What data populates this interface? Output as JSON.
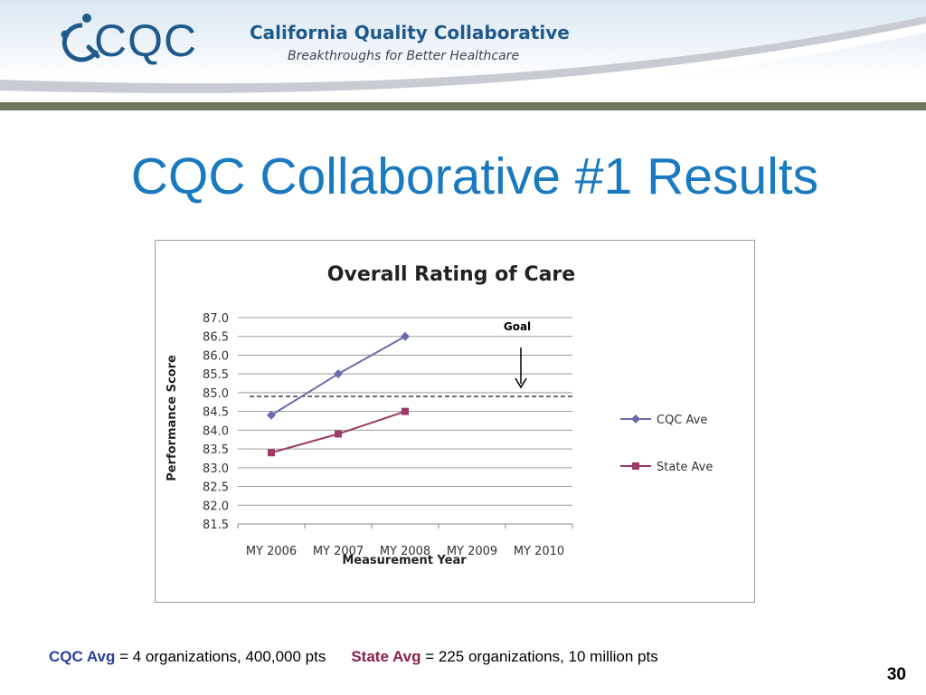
{
  "header": {
    "logo_text": "CQC",
    "org_name": "California Quality Collaborative",
    "tagline": "Breakthroughs for Better Healthcare",
    "rule_color": "#6f7662"
  },
  "slide": {
    "title": "CQC Collaborative #1 Results",
    "page_number": "30"
  },
  "footer": {
    "cqc_key": "CQC Avg",
    "cqc_text": " = 4 organizations, 400,000 pts",
    "state_key": "State Avg",
    "state_text": " = 225 organizations, 10 million pts",
    "cqc_color": "#2b3f9e",
    "state_color": "#8a1f4e"
  },
  "chart_data": {
    "type": "line",
    "title": "Overall Rating of Care",
    "xlabel": "Measurement Year",
    "ylabel": "Performance Score",
    "categories": [
      "MY 2006",
      "MY 2007",
      "MY 2008",
      "MY 2009",
      "MY 2010"
    ],
    "ylim": [
      81.5,
      87.0
    ],
    "yticks": [
      "81.5",
      "82.0",
      "82.5",
      "83.0",
      "83.5",
      "84.0",
      "84.5",
      "85.0",
      "85.5",
      "86.0",
      "86.5",
      "87.0"
    ],
    "grid": true,
    "legend": "right",
    "goal": {
      "label": "Goal",
      "value": 84.9
    },
    "series": [
      {
        "name": "CQC Ave",
        "values": [
          84.4,
          85.5,
          86.5,
          null,
          null
        ],
        "color": "#6a6aae",
        "marker": "diamond"
      },
      {
        "name": "State Ave",
        "values": [
          83.4,
          83.9,
          84.5,
          null,
          null
        ],
        "color": "#9e3a66",
        "marker": "square"
      }
    ]
  }
}
